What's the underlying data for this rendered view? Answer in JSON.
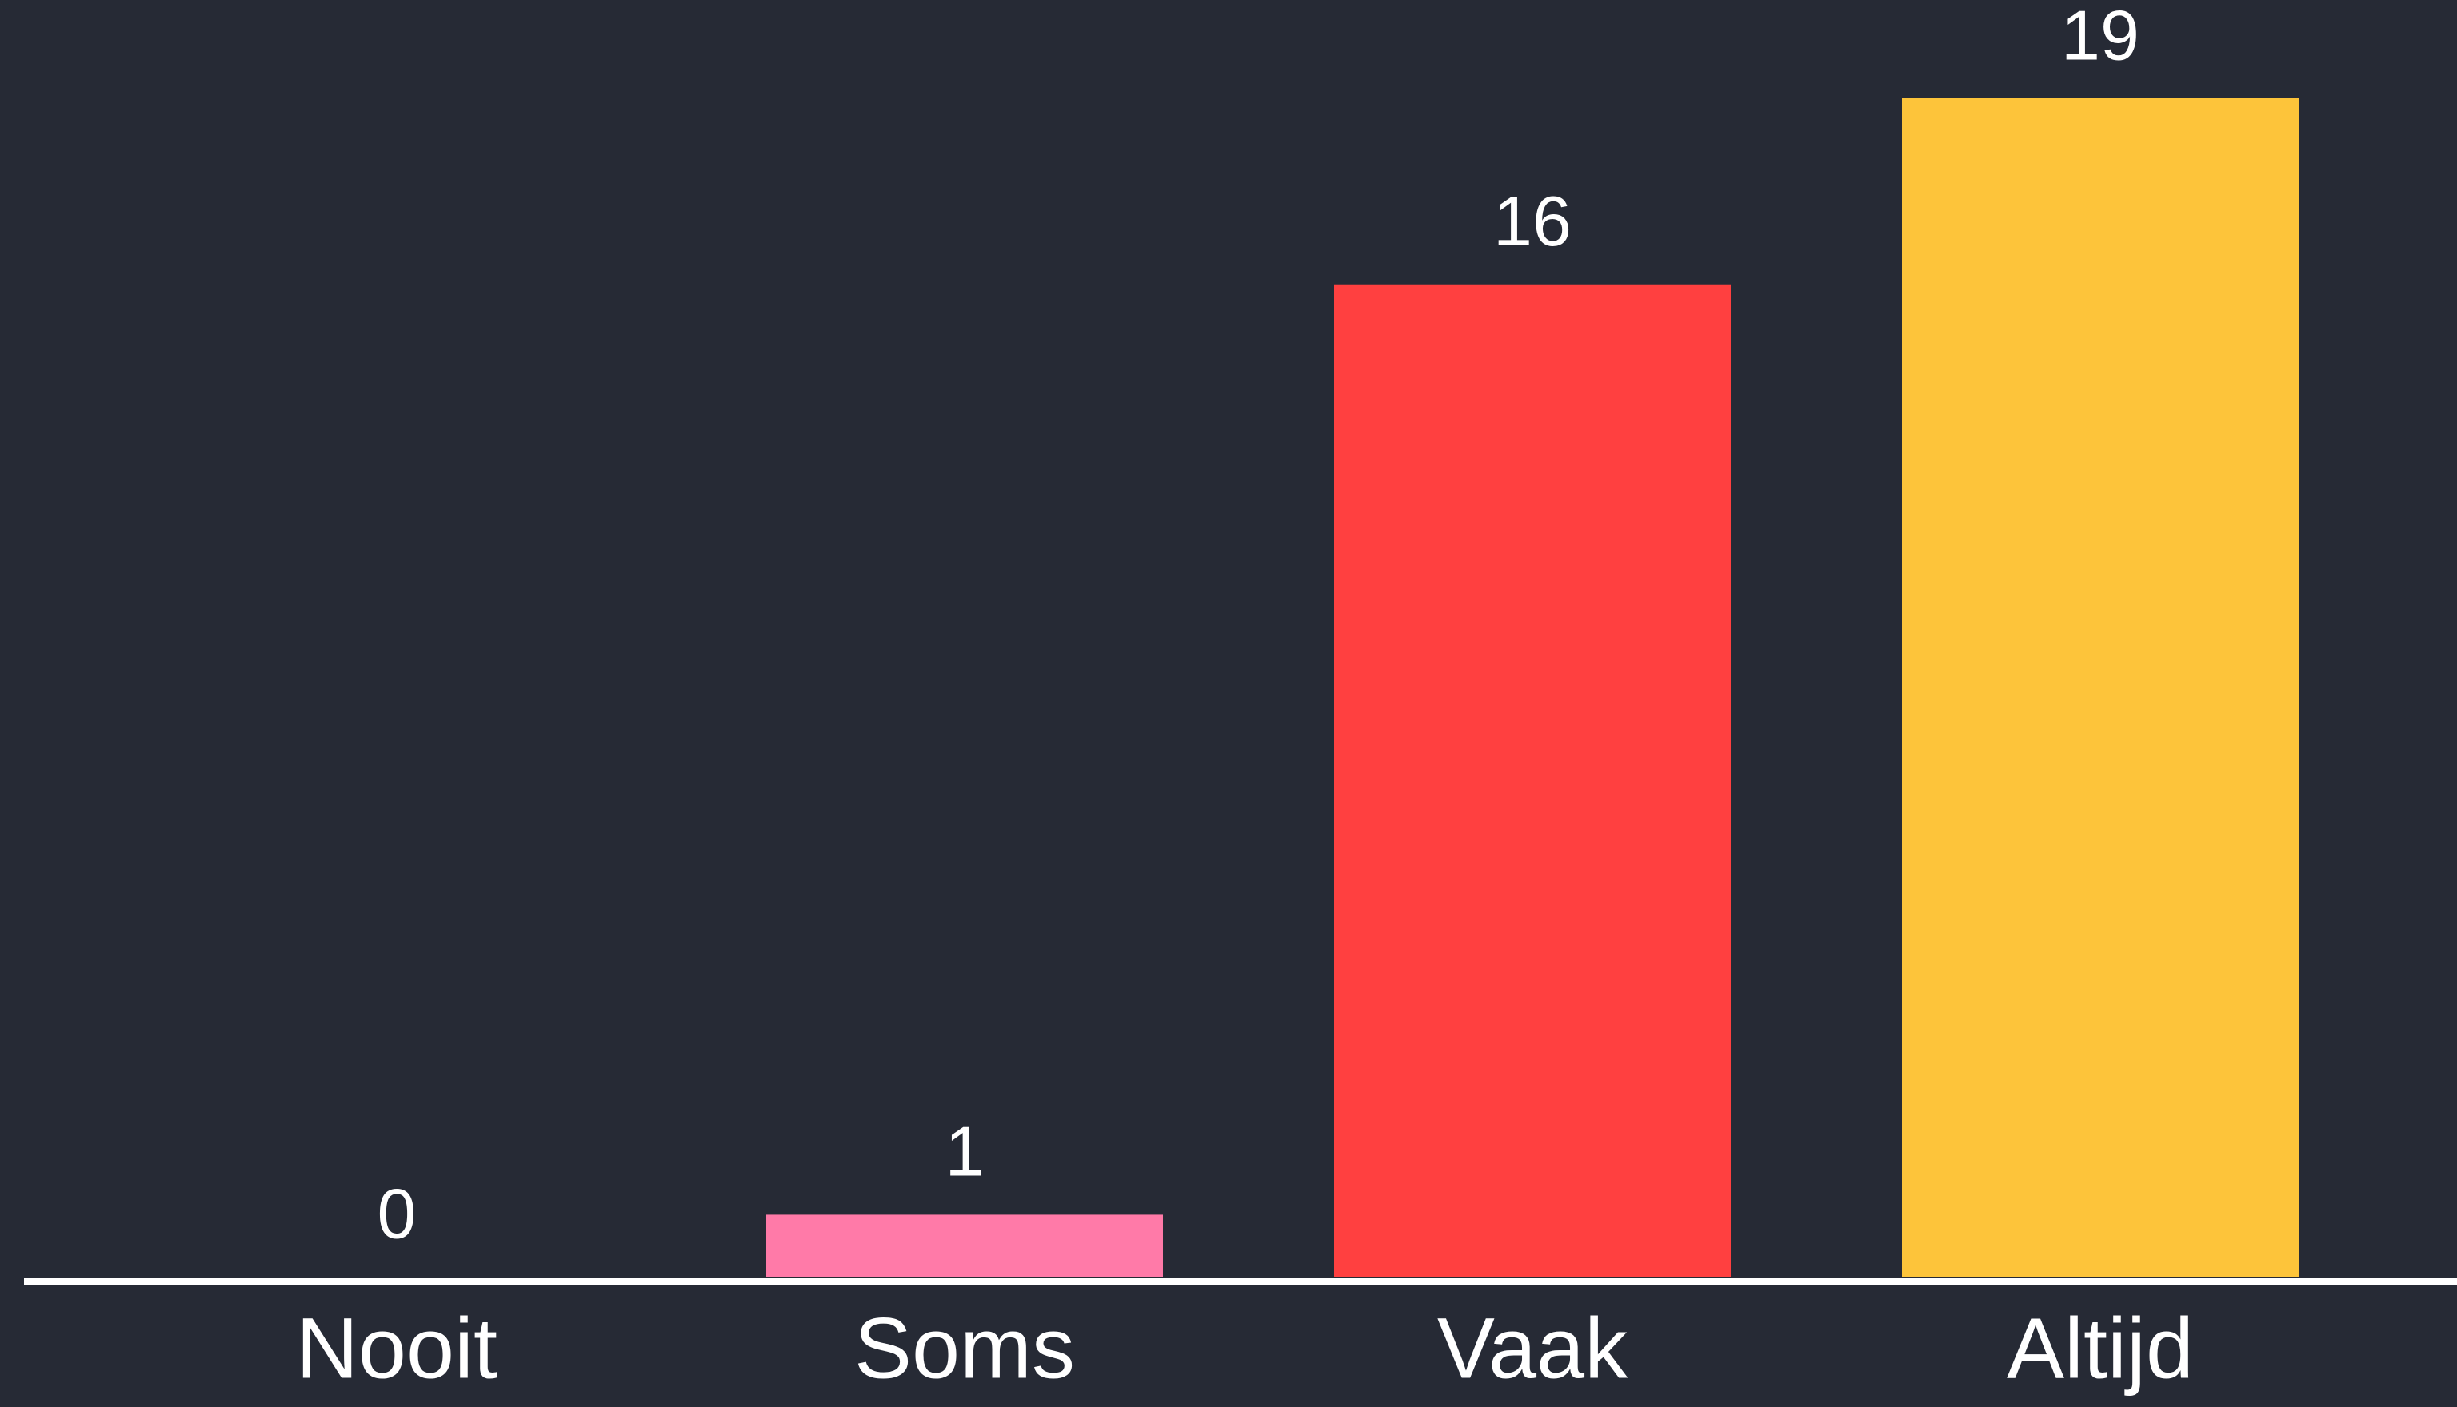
{
  "chart_data": {
    "type": "bar",
    "categories": [
      "Nooit",
      "Soms",
      "Vaak",
      "Altijd"
    ],
    "values": [
      0,
      1,
      16,
      19
    ],
    "colors": [
      null,
      "#ff7aa8",
      "#ff4040",
      "#fdc43a"
    ],
    "background": "#262a35"
  }
}
